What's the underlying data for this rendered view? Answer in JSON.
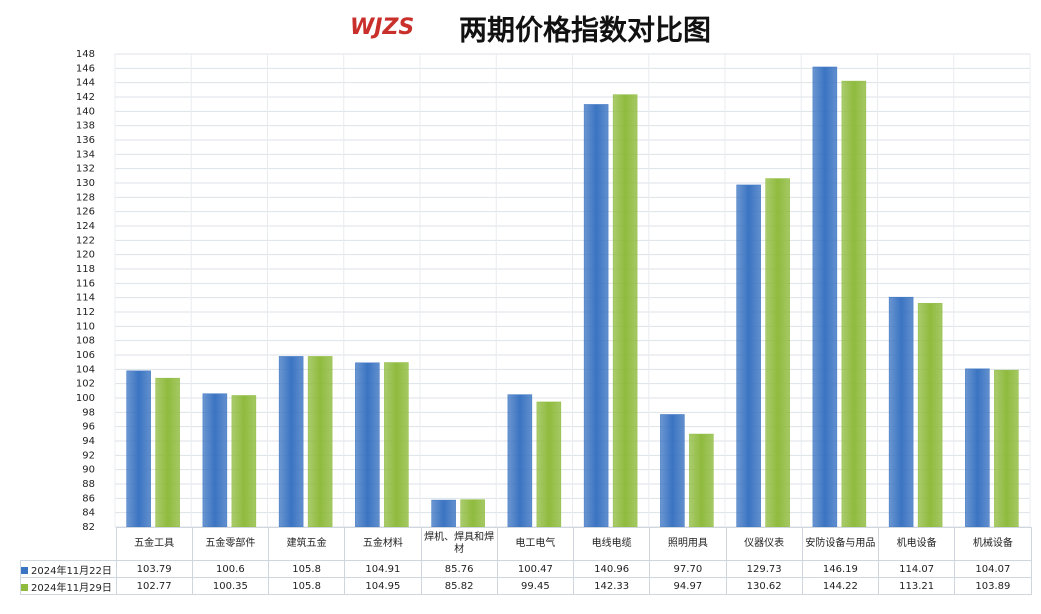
{
  "logo": "WJZS",
  "chart_data": {
    "type": "bar",
    "title": "两期价格指数对比图",
    "categories": [
      "五金工具",
      "五金零部件",
      "建筑五金",
      "五金材料",
      "焊机、焊具和焊材",
      "电工电气",
      "电线电缆",
      "照明用具",
      "仪器仪表",
      "安防设备与用品",
      "机电设备",
      "机械设备"
    ],
    "series": [
      {
        "name": "2024年11月22日",
        "color": "#3b74c2",
        "values": [
          103.79,
          100.6,
          105.8,
          104.91,
          85.76,
          100.47,
          140.96,
          97.7,
          129.73,
          146.19,
          114.07,
          104.07
        ],
        "value_labels": [
          "103.79",
          "100.6",
          "105.8",
          "104.91",
          "85.76",
          "100.47",
          "140.96",
          "97.70",
          "129.73",
          "146.19",
          "114.07",
          "104.07"
        ]
      },
      {
        "name": "2024年11月29日",
        "color": "#8fbb3e",
        "values": [
          102.77,
          100.35,
          105.8,
          104.95,
          85.82,
          99.45,
          142.33,
          94.97,
          130.62,
          144.22,
          113.21,
          103.89
        ]
      }
    ],
    "ylim": [
      82,
      148
    ],
    "yticks": [
      82,
      84,
      86,
      88,
      90,
      92,
      94,
      96,
      98,
      100,
      102,
      104,
      106,
      108,
      110,
      112,
      114,
      116,
      118,
      120,
      122,
      124,
      126,
      128,
      130,
      132,
      134,
      136,
      138,
      140,
      142,
      144,
      146,
      148
    ],
    "grid": true
  }
}
